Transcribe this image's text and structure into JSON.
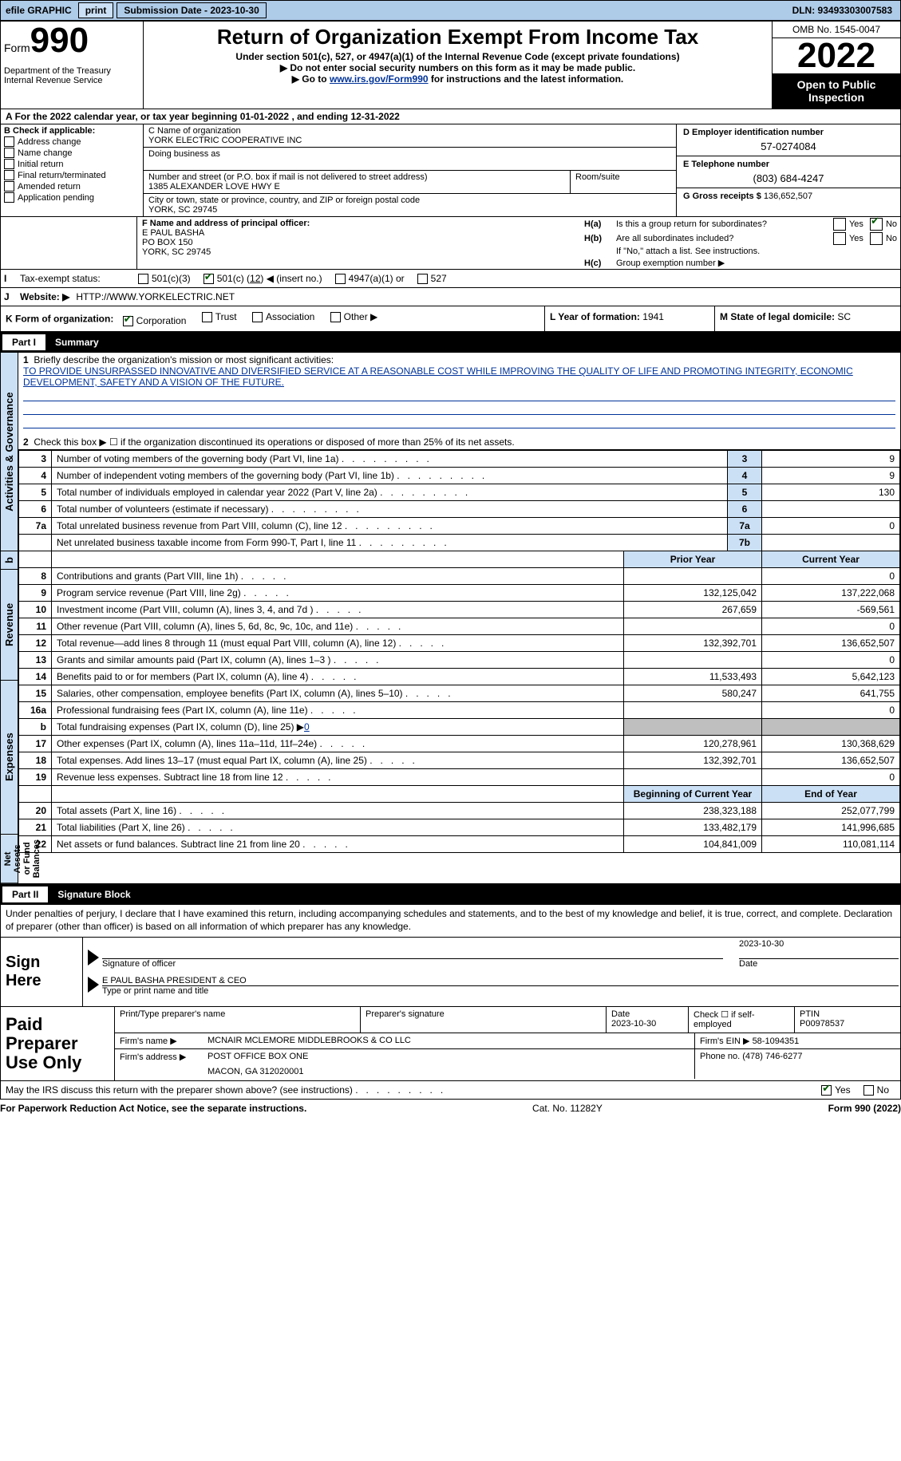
{
  "topBar": {
    "efile": "efile GRAPHIC",
    "print": "print",
    "subDate": "Submission Date - 2023-10-30",
    "dln": "DLN: 93493303007583"
  },
  "header": {
    "formWord": "Form",
    "formNum": "990",
    "title": "Return of Organization Exempt From Income Tax",
    "subtitle": "Under section 501(c), 527, or 4947(a)(1) of the Internal Revenue Code (except private foundations)",
    "noSSN": "▶ Do not enter social security numbers on this form as it may be made public.",
    "goTo": "▶ Go to ",
    "goToLink": "www.irs.gov/Form990",
    "goToAfter": " for instructions and the latest information.",
    "dept": "Department of the Treasury Internal Revenue Service",
    "omb": "OMB No. 1545-0047",
    "year": "2022",
    "openPublic": "Open to Public Inspection"
  },
  "rowA": {
    "textA": "A",
    "text": "For the 2022 calendar year, or tax year beginning",
    "begin": "01-01-2022",
    "mid": ", and ending",
    "end": "12-31-2022"
  },
  "colB": {
    "label": "B Check if applicable:",
    "items": [
      "Address change",
      "Name change",
      "Initial return",
      "Final return/terminated",
      "Amended return",
      "Application pending"
    ]
  },
  "colC": {
    "nameLabel": "C Name of organization",
    "name": "YORK ELECTRIC COOPERATIVE INC",
    "dbaLabel": "Doing business as",
    "addrLabel": "Number and street (or P.O. box if mail is not delivered to street address)",
    "addr": "1385 ALEXANDER LOVE HWY E",
    "roomLabel": "Room/suite",
    "cityLabel": "City or town, state or province, country, and ZIP or foreign postal code",
    "city": "YORK, SC  29745"
  },
  "colD": {
    "label": "D Employer identification number",
    "val": "57-0274084",
    "eLabel": "E Telephone number",
    "eVal": "(803) 684-4247",
    "gLabel": "G Gross receipts $",
    "gVal": "136,652,507"
  },
  "rowF": {
    "label": "F Name and address of principal officer:",
    "name": "E PAUL BASHA",
    "addr1": "PO BOX 150",
    "addr2": "YORK, SC  29745"
  },
  "rowH": {
    "aLabel": "H(a)",
    "aText": "Is this a group return for subordinates?",
    "bLabel": "H(b)",
    "bText": "Are all subordinates included?",
    "bNote": "If \"No,\" attach a list. See instructions.",
    "cLabel": "H(c)",
    "cText": "Group exemption number ▶",
    "yes": "Yes",
    "no": "No"
  },
  "rowI": {
    "label": "Tax-exempt status:",
    "opt1": "501(c)(3)",
    "opt2a": "501(c) (",
    "opt2num": "12",
    "opt2b": ") ◀ (insert no.)",
    "opt3": "4947(a)(1) or",
    "opt4": "527"
  },
  "rowJ": {
    "label": "Website: ▶",
    "val": "HTTP://WWW.YORKELECTRIC.NET"
  },
  "rowK": {
    "label": "K Form of organization:",
    "opts": [
      "Corporation",
      "Trust",
      "Association",
      "Other ▶"
    ],
    "lLabel": "L Year of formation:",
    "lVal": "1941",
    "mLabel": "M State of legal domicile:",
    "mVal": "SC"
  },
  "part1": {
    "part": "Part I",
    "title": "Summary"
  },
  "section1": {
    "q1": "Briefly describe the organization's mission or most significant activities:",
    "mission": "TO PROVIDE UNSURPASSED INNOVATIVE AND DIVERSIFIED SERVICE AT A REASONABLE COST WHILE IMPROVING THE QUALITY OF LIFE AND PROMOTING INTEGRITY, ECONOMIC DEVELOPMENT, SAFETY AND A VISION OF THE FUTURE.",
    "q2": "Check this box ▶ ☐ if the organization discontinued its operations or disposed of more than 25% of its net assets.",
    "rows": [
      {
        "n": "3",
        "t": "Number of voting members of the governing body (Part VI, line 1a)",
        "box": "3",
        "v": "9"
      },
      {
        "n": "4",
        "t": "Number of independent voting members of the governing body (Part VI, line 1b)",
        "box": "4",
        "v": "9"
      },
      {
        "n": "5",
        "t": "Total number of individuals employed in calendar year 2022 (Part V, line 2a)",
        "box": "5",
        "v": "130"
      },
      {
        "n": "6",
        "t": "Total number of volunteers (estimate if necessary)",
        "box": "6",
        "v": ""
      },
      {
        "n": "7a",
        "t": "Total unrelated business revenue from Part VIII, column (C), line 12",
        "box": "7a",
        "v": "0"
      },
      {
        "n": "",
        "t": "Net unrelated business taxable income from Form 990-T, Part I, line 11",
        "box": "7b",
        "v": ""
      }
    ]
  },
  "revHeader": {
    "prior": "Prior Year",
    "current": "Current Year"
  },
  "revenue": [
    {
      "n": "8",
      "t": "Contributions and grants (Part VIII, line 1h)",
      "p": "",
      "c": "0"
    },
    {
      "n": "9",
      "t": "Program service revenue (Part VIII, line 2g)",
      "p": "132,125,042",
      "c": "137,222,068"
    },
    {
      "n": "10",
      "t": "Investment income (Part VIII, column (A), lines 3, 4, and 7d )",
      "p": "267,659",
      "c": "-569,561"
    },
    {
      "n": "11",
      "t": "Other revenue (Part VIII, column (A), lines 5, 6d, 8c, 9c, 10c, and 11e)",
      "p": "",
      "c": "0"
    },
    {
      "n": "12",
      "t": "Total revenue—add lines 8 through 11 (must equal Part VIII, column (A), line 12)",
      "p": "132,392,701",
      "c": "136,652,507"
    }
  ],
  "expenses": [
    {
      "n": "13",
      "t": "Grants and similar amounts paid (Part IX, column (A), lines 1–3 )",
      "p": "",
      "c": "0"
    },
    {
      "n": "14",
      "t": "Benefits paid to or for members (Part IX, column (A), line 4)",
      "p": "11,533,493",
      "c": "5,642,123"
    },
    {
      "n": "15",
      "t": "Salaries, other compensation, employee benefits (Part IX, column (A), lines 5–10)",
      "p": "580,247",
      "c": "641,755"
    },
    {
      "n": "16a",
      "t": "Professional fundraising fees (Part IX, column (A), line 11e)",
      "p": "",
      "c": "0"
    },
    {
      "n": "b",
      "t": "Total fundraising expenses (Part IX, column (D), line 25) ▶",
      "bval": "0",
      "gray": true
    },
    {
      "n": "17",
      "t": "Other expenses (Part IX, column (A), lines 11a–11d, 11f–24e)",
      "p": "120,278,961",
      "c": "130,368,629"
    },
    {
      "n": "18",
      "t": "Total expenses. Add lines 13–17 (must equal Part IX, column (A), line 25)",
      "p": "132,392,701",
      "c": "136,652,507"
    },
    {
      "n": "19",
      "t": "Revenue less expenses. Subtract line 18 from line 12",
      "p": "",
      "c": "0"
    }
  ],
  "balHeader": {
    "begin": "Beginning of Current Year",
    "end": "End of Year"
  },
  "balances": [
    {
      "n": "20",
      "t": "Total assets (Part X, line 16)",
      "p": "238,323,188",
      "c": "252,077,799"
    },
    {
      "n": "21",
      "t": "Total liabilities (Part X, line 26)",
      "p": "133,482,179",
      "c": "141,996,685"
    },
    {
      "n": "22",
      "t": "Net assets or fund balances. Subtract line 21 from line 20",
      "p": "104,841,009",
      "c": "110,081,114"
    }
  ],
  "vtabs": {
    "gov": "Activities & Governance",
    "rev": "Revenue",
    "exp": "Expenses",
    "net": "Net Assets or Fund Balances"
  },
  "part2": {
    "part": "Part II",
    "title": "Signature Block"
  },
  "sigDecl": "Under penalties of perjury, I declare that I have examined this return, including accompanying schedules and statements, and to the best of my knowledge and belief, it is true, correct, and complete. Declaration of preparer (other than officer) is based on all information of which preparer has any knowledge.",
  "signHere": {
    "label": "Sign Here",
    "sigOfficer": "Signature of officer",
    "date": "Date",
    "dateVal": "2023-10-30",
    "nameTitle": "E PAUL BASHA  PRESIDENT & CEO",
    "typeName": "Type or print name and title"
  },
  "preparer": {
    "label": "Paid Preparer Use Only",
    "printName": "Print/Type preparer's name",
    "prepSig": "Preparer's signature",
    "dateLbl": "Date",
    "dateVal": "2023-10-30",
    "checkIf": "Check ☐ if self-employed",
    "ptinLbl": "PTIN",
    "ptin": "P00978537",
    "firmNameLbl": "Firm's name    ▶",
    "firmName": "MCNAIR MCLEMORE MIDDLEBROOKS & CO LLC",
    "firmEinLbl": "Firm's EIN ▶",
    "firmEin": "58-1094351",
    "firmAddrLbl": "Firm's address ▶",
    "firmAddr1": "POST OFFICE BOX ONE",
    "firmAddr2": "MACON, GA  312020001",
    "phoneLbl": "Phone no.",
    "phone": "(478) 746-6277"
  },
  "footer": {
    "discuss": "May the IRS discuss this return with the preparer shown above? (see instructions)",
    "yes": "Yes",
    "no": "No",
    "paperwork": "For Paperwork Reduction Act Notice, see the separate instructions.",
    "cat": "Cat. No. 11282Y",
    "form": "Form 990 (2022)"
  },
  "bRow": {
    "b": "b"
  }
}
